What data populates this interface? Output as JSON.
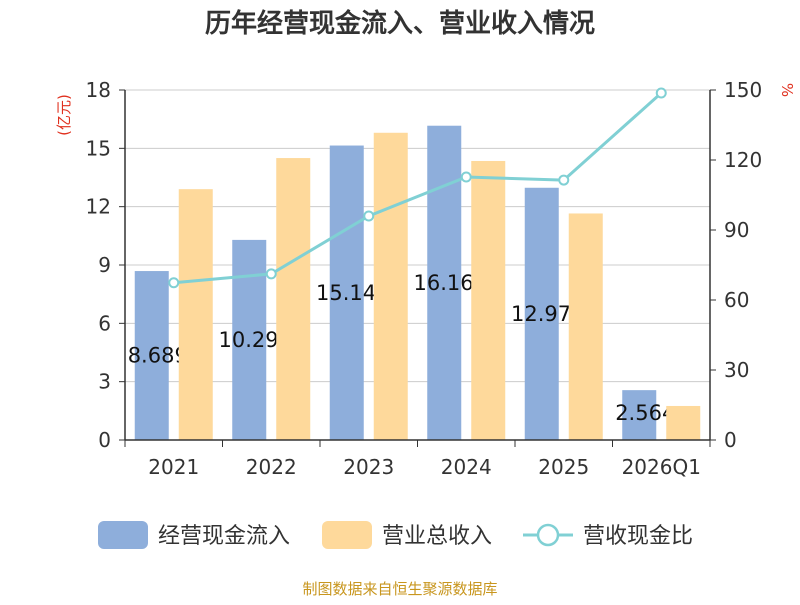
{
  "chart_data": {
    "type": "bar",
    "title": "历年经营现金流入、营业收入情况",
    "categories": [
      "2021",
      "2022",
      "2023",
      "2024",
      "2025",
      "2026Q1"
    ],
    "left_axis": {
      "unit": "(亿元)",
      "ylim": [
        0,
        18
      ],
      "ticks": [
        "0",
        "3",
        "6",
        "9",
        "12",
        "15",
        "18"
      ]
    },
    "right_axis": {
      "unit": "%",
      "ylim": [
        0,
        150
      ],
      "ticks": [
        "0",
        "30",
        "60",
        "90",
        "120",
        "150"
      ]
    },
    "series": [
      {
        "name": "经营现金流入",
        "type": "bar",
        "axis": "left",
        "color": "#8eaedb",
        "values": [
          8.689,
          10.291,
          15.144,
          16.163,
          12.972,
          2.564
        ],
        "data_labels": [
          "8.689",
          "10.291",
          "15.144",
          "16.163",
          "12.972",
          "2.564"
        ]
      },
      {
        "name": "营业总收入",
        "type": "bar",
        "axis": "left",
        "color": "#fed99b",
        "values": [
          12.9,
          14.5,
          15.8,
          14.35,
          11.65,
          1.75
        ]
      },
      {
        "name": "营收现金比",
        "type": "line",
        "axis": "right",
        "color": "#80d0d4",
        "values": [
          67.4,
          71.2,
          96.0,
          112.7,
          111.4,
          148.7
        ]
      }
    ],
    "grid": true,
    "legend_position": "bottom"
  },
  "footer": {
    "source": "制图数据来自恒生聚源数据库"
  }
}
